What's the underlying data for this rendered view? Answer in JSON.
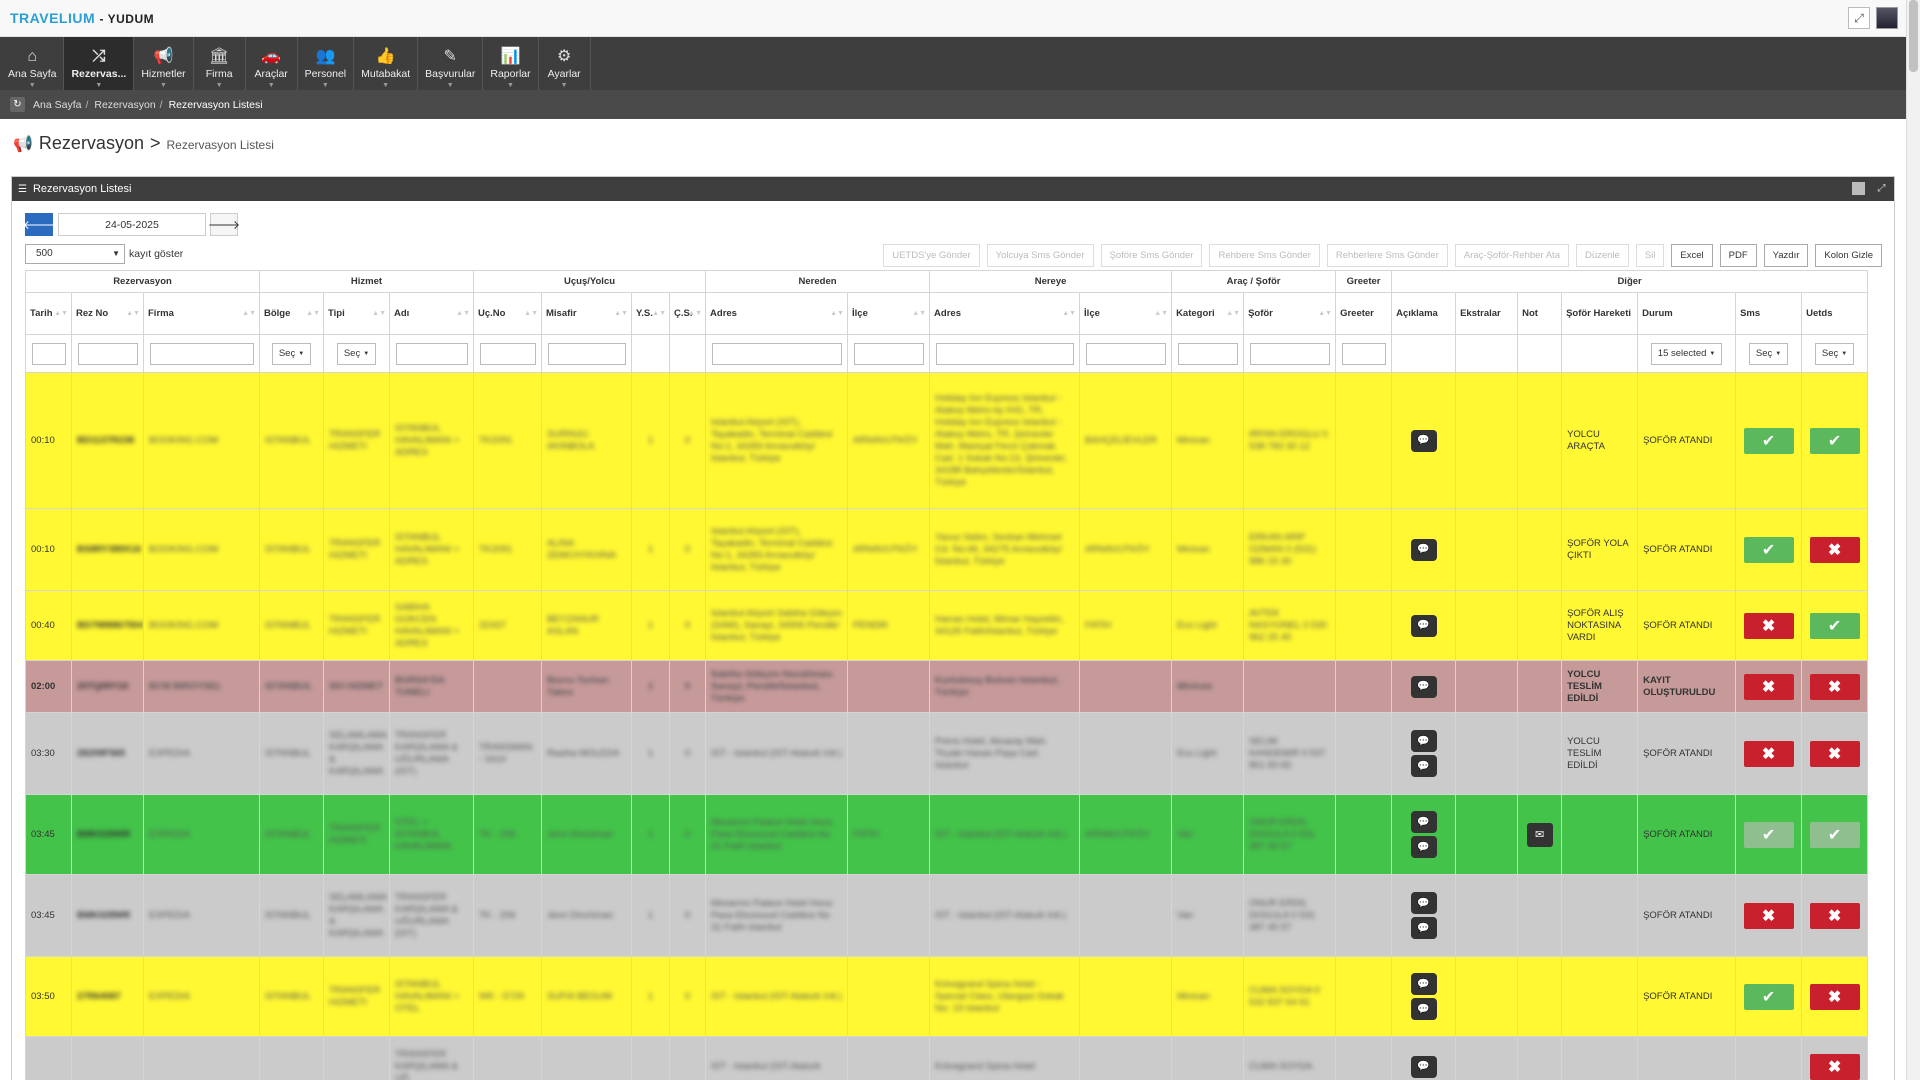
{
  "app": {
    "brand": "TRAVELIUM",
    "user": "- YUDUM"
  },
  "nav": [
    {
      "label": "Ana Sayfa",
      "icon": "⌂"
    },
    {
      "label": "Rezervas...",
      "icon": "⤮",
      "active": true
    },
    {
      "label": "Hizmetler",
      "icon": "📢"
    },
    {
      "label": "Firma",
      "icon": "🏛"
    },
    {
      "label": "Araçlar",
      "icon": "🚗"
    },
    {
      "label": "Personel",
      "icon": "👥"
    },
    {
      "label": "Mutabakat",
      "icon": "👍"
    },
    {
      "label": "Başvurular",
      "icon": "✎"
    },
    {
      "label": "Raporlar",
      "icon": "📊"
    },
    {
      "label": "Ayarlar",
      "icon": "⚙"
    }
  ],
  "breadcrumb": [
    "Ana Sayfa",
    "Rezervasyon",
    "Rezervasyon Listesi"
  ],
  "page": {
    "title": "Rezervasyon",
    "separator": ">",
    "subtitle": "Rezervasyon Listesi"
  },
  "panel": {
    "title": "Rezervasyon Listesi"
  },
  "controls": {
    "date": "24-05-2025",
    "page_size": "500",
    "records_label": "kayıt göster"
  },
  "actions": [
    {
      "label": "UETDS'ye Gönder",
      "enabled": false
    },
    {
      "label": "Yolcuya Sms Gönder",
      "enabled": false
    },
    {
      "label": "Şoföre Sms Gönder",
      "enabled": false
    },
    {
      "label": "Rehbere Sms Gönder",
      "enabled": false
    },
    {
      "label": "Rehberlere Sms Gönder",
      "enabled": false
    },
    {
      "label": "Araç-Şoför-Rehber Ata",
      "enabled": false
    },
    {
      "label": "Düzenle",
      "enabled": false
    },
    {
      "label": "Sil",
      "enabled": false
    },
    {
      "label": "Excel",
      "enabled": true
    },
    {
      "label": "PDF",
      "enabled": true
    },
    {
      "label": "Yazdır",
      "enabled": true
    },
    {
      "label": "Kolon Gizle",
      "enabled": true
    }
  ],
  "groups": [
    {
      "label": "Rezervasyon",
      "span": 3
    },
    {
      "label": "Hizmet",
      "span": 3
    },
    {
      "label": "Uçuş/Yolcu",
      "span": 4
    },
    {
      "label": "Nereden",
      "span": 2
    },
    {
      "label": "Nereye",
      "span": 2
    },
    {
      "label": "Araç / Şoför",
      "span": 2
    },
    {
      "label": "Greeter",
      "span": 1
    },
    {
      "label": "Diğer",
      "span": 7
    }
  ],
  "columns": [
    "Tarih",
    "Rez No",
    "Firma",
    "Bölge",
    "Tipi",
    "Adı",
    "Uç.No",
    "Misafir",
    "Y.S.",
    "Ç.S.",
    "Adres",
    "İlçe",
    "Adres",
    "İlçe",
    "Kategori",
    "Şoför",
    "Greeter",
    "Açıklama",
    "Ekstralar",
    "Not",
    "Şoför Hareketi",
    "Durum",
    "Sms",
    "Uetds"
  ],
  "filters": {
    "select_label": "Seç",
    "durum_label": "15 selected"
  },
  "rows": [
    {
      "color": "yellow",
      "time": "00:10",
      "rez": "BD1137R238",
      "firma": "BOOKING.COM",
      "bolge": "ISTANBUL",
      "tipi": "TRANSFER HIZMETI",
      "adi": "ISTANBUL HAVALIMANI > ADRES",
      "ucno": "TK2091",
      "misafir": "SURINJU AKINBOLA",
      "ys": "1",
      "cs": "0",
      "nereden_adres": "Istanbul Airport (IST), Tayakadin, Terminal Caddesi No:1, 34283 Arnavutköy/İstanbul, Türkiye",
      "nereden_ilce": "ARNAVUTKÖY",
      "nereye_adres": "Holiday Inn Express Istanbul - Atakoy Metro by IHG, TR, Holiday Inn Express Istanbul - Atakoy Metro, TR, Şirinevler Mah. Mareşal Fevzi Çakmak Cad. 1 Sokak No:13, Şirinevler, 34188 Bahçelievler/İstanbul, Türkiye",
      "nereye_ilce": "BAHÇELİEVLER",
      "kategori": "Minivan",
      "sofor": "IRFAN EROGLU 0 538 783 30 12",
      "greeter": "",
      "comments": 1,
      "not": false,
      "hareket": "YOLCU ARAÇTA",
      "durum": "ŞOFÖR ATANDI",
      "sms": "ok",
      "uetds": "ok"
    },
    {
      "color": "yellow",
      "time": "00:10",
      "rez": "BS8RY389X16",
      "firma": "BOOKING.COM",
      "bolge": "ISTANBUL",
      "tipi": "TRANSFER HIZMETI",
      "adi": "ISTANBUL HAVALIMANI > ADRES",
      "ucno": "TK2091",
      "misafir": "ALINA ZEMCHYKHINA",
      "ys": "1",
      "cs": "0",
      "nereden_adres": "Istanbul Airport (IST), Tayakadin, Terminal Caddesi No:1, 34283 Arnavutköy/İstanbul, Türkiye",
      "nereden_ilce": "ARNAVUTKÖY",
      "nereye_adres": "Yavuz Selim, Sevban Mehmet Cd. No:46, 34275 Arnavutköy/İstanbul, Türkiye",
      "nereye_ilce": "ARNAVUTKÖY",
      "kategori": "Minivan",
      "sofor": "ERKAN ARIF OZMAN 0 (531) 986 15 30",
      "greeter": "",
      "comments": 1,
      "not": false,
      "hareket": "ŞOFÖR YOLA ÇIKTI",
      "durum": "ŞOFÖR ATANDI",
      "sms": "ok",
      "uetds": "no"
    },
    {
      "color": "yellow",
      "time": "00:40",
      "rez": "BD7988867504",
      "firma": "BOOKING.COM",
      "bolge": "ISTANBUL",
      "tipi": "TRANSFER HIZMETI",
      "adi": "SABIHA GOKCEN HAVALIMANI > ADRES",
      "ucno": "3Z437",
      "misafir": "BEYZANUR ASLAN",
      "ys": "1",
      "cs": "0",
      "nereden_adres": "Istanbul Airport Sabiha Gökçen (SAW), Sanayi, 34906 Pendik/İstanbul, Türkiye",
      "nereden_ilce": "PENDİK",
      "nereye_adres": "Harran Hotel, Mimar Hayrettin, 34126 Fatih/İstanbul, Türkiye",
      "nereye_ilce": "FATİH",
      "kategori": "Eco Light",
      "sofor": "AVTEK NASYONEL 0 530 962 25 40",
      "greeter": "",
      "comments": 1,
      "not": false,
      "hareket": "ŞOFÖR ALIŞ NOKTASINA VARDI",
      "durum": "ŞOFÖR ATANDI",
      "sms": "no",
      "uetds": "ok"
    },
    {
      "color": "red",
      "time": "02:00",
      "rez": "20TQ09Y10",
      "firma": "BCM BIROYSEL",
      "bolge": "ISTANBUL",
      "tipi": "SKI HIZMET",
      "adi": "BURSA'DA TUNELI",
      "ucno": "",
      "misafir": "Burcu Turhan Takes",
      "ys": "1",
      "cs": "0",
      "nereden_adres": "Sabiha Gökçen Havalimanı Sanayi, Pendik/İstanbul, Türkiye",
      "nereden_ilce": "",
      "nereye_adres": "Kurtulmuş Bulvarı Istanbul, Türkiye",
      "nereye_ilce": "",
      "kategori": "Minivan",
      "sofor": "",
      "greeter": "",
      "comments": 1,
      "not": false,
      "hareket": "YOLCU TESLİM EDİLDİ",
      "durum": "KAYIT OLUŞTURULDU",
      "sms": "no",
      "uetds": "no"
    },
    {
      "color": "grey",
      "time": "03:30",
      "rez": "28209F565",
      "firma": "EXPEDIA",
      "bolge": "ISTANBUL",
      "tipi": "SELAMLAMA KARŞILAMA & KARŞILAMA",
      "adi": "TRANSFER KARŞILAMA & UĞURLAMA (IST)",
      "ucno": "TRANSMAN - 3410",
      "misafir": "Rasiha MOLEDA",
      "ys": "1",
      "cs": "0",
      "nereden_adres": "IST - Istanbul (IST-Ataturk Intl.)",
      "nereden_ilce": "",
      "nereye_adres": "Prens Hotel, Aksaray Mah. Tiryaki Hasan Paşa Cad. Istanbul",
      "nereye_ilce": "",
      "kategori": "Eco Light",
      "sofor": "SELIM KANDEMIR 0 537 851 83 65",
      "greeter": "",
      "comments": 2,
      "not": false,
      "hareket": "YOLCU TESLİM EDİLDİ",
      "durum": "ŞOFÖR ATANDI",
      "sms": "no",
      "uetds": "no"
    },
    {
      "color": "green",
      "time": "03:45",
      "rez": "BMK028WR",
      "firma": "EXPEDIA",
      "bolge": "ISTANBUL",
      "tipi": "TRANSFER HIZMETI",
      "adi": "OTEL > ISTANBUL HAVALIMANI",
      "ucno": "TK - 206",
      "misafir": "Jenn Dinchman",
      "ys": "1",
      "cs": "0",
      "nereden_adres": "Mesarnm Palace Hotel Hoca Pasa Ebussuud Caddesi No 31 Fatih Istanbul",
      "nereden_ilce": "FATİH",
      "nereye_adres": "IST - Istanbul (IST-Ataturk Intl.)",
      "nereye_ilce": "ARNAVUTKÖY",
      "kategori": "Van",
      "sofor": "ONUR ERDIL DOGULA 0 531 387 45 57",
      "greeter": "",
      "comments": 2,
      "not": true,
      "hareket": "",
      "durum": "ŞOFÖR ATANDI",
      "sms": "okdim",
      "uetds": "okdim"
    },
    {
      "color": "grey",
      "time": "03:45",
      "rez": "BMK028WR",
      "firma": "EXPEDIA",
      "bolge": "ISTANBUL",
      "tipi": "SELAMLAMA KARŞILAMA & KARŞILAMA",
      "adi": "TRANSFER KARŞILAMA & UĞURLAMA (IST)",
      "ucno": "TK - 206",
      "misafir": "Jenn Dinchman",
      "ys": "1",
      "cs": "0",
      "nereden_adres": "Mesarnm Palace Hotel Hoca Pasa Ebussuud Caddesi No 31 Fatih Istanbul",
      "nereden_ilce": "",
      "nereye_adres": "IST - Istanbul (IST-Ataturk Intl.)",
      "nereye_ilce": "",
      "kategori": "Van",
      "sofor": "ONUR ERDIL DOGULA 0 531 387 45 57",
      "greeter": "",
      "comments": 2,
      "not": false,
      "hareket": "",
      "durum": "ŞOFÖR ATANDI",
      "sms": "no",
      "uetds": "no"
    },
    {
      "color": "yellow",
      "time": "03:50",
      "rez": "27R64087",
      "firma": "EXPEDIA",
      "bolge": "ISTANBUL",
      "tipi": "TRANSFER HIZMETI",
      "adi": "ISTANBUL HAVALIMANI > OTEL",
      "ucno": "WK - 5729",
      "misafir": "SUFIA BEGUM",
      "ys": "1",
      "cs": "0",
      "nereden_adres": "IST - Istanbul (IST-Ataturk Intl.)",
      "nereden_ilce": "",
      "nereye_adres": "Kriivagrand Spina Hotel - Special Class, Ulangazi Sokak No: 19 Istanbul",
      "nereye_ilce": "",
      "kategori": "Minivan",
      "sofor": "CUMA SOYDA 0 532 837 64 61",
      "greeter": "",
      "comments": 2,
      "not": false,
      "hareket": "",
      "durum": "ŞOFÖR ATANDI",
      "sms": "ok",
      "uetds": "no"
    },
    {
      "color": "grey",
      "time": "",
      "rez": "",
      "firma": "",
      "bolge": "",
      "tipi": "",
      "adi": "TRANSFER KARŞILAMA & UĞ",
      "ucno": "",
      "misafir": "",
      "ys": "",
      "cs": "",
      "nereden_adres": "IST - Istanbul (IST-Ataturk",
      "nereden_ilce": "",
      "nereye_adres": "Kriivagrand Spina Hotel",
      "nereye_ilce": "",
      "kategori": "",
      "sofor": "CUMA SOYDA",
      "greeter": "",
      "comments": 1,
      "not": false,
      "hareket": "",
      "durum": "",
      "sms": "",
      "uetds": "no"
    }
  ]
}
